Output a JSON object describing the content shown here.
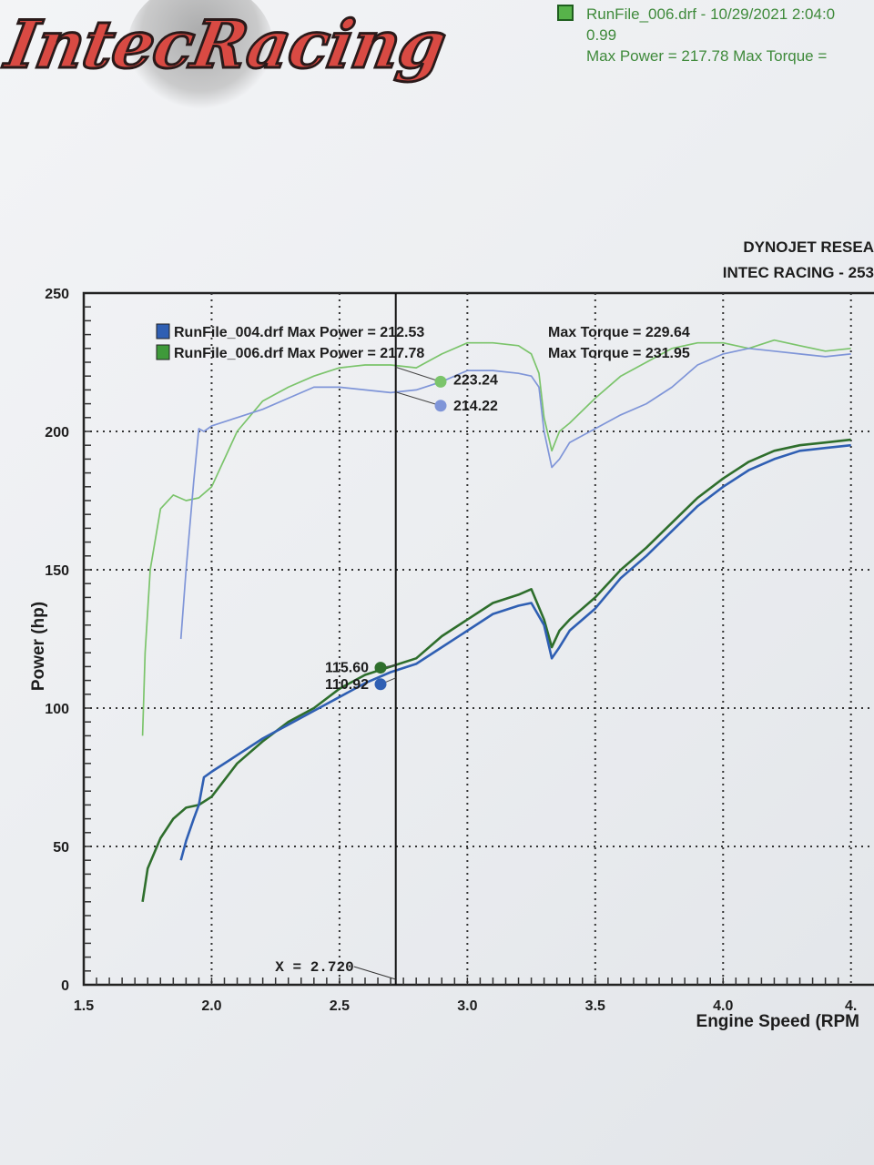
{
  "header": {
    "logo_text": "IntecRacing",
    "run_line": "RunFile_006.drf - 10/29/2021 2:04:0",
    "line2": "0.99",
    "line3": "Max Power = 217.78  Max Torque ="
  },
  "titles": {
    "line1": "DYNOJET RESEA",
    "line2": "INTEC RACING - 253"
  },
  "colors": {
    "run004": "#2f5fb3",
    "run006": "#2e6e2c",
    "run004_light": "#7f95d8",
    "run006_light": "#7bc46b"
  },
  "chart_data": {
    "type": "line",
    "xlabel": "Engine Speed (RPM",
    "ylabel": "Power (hp)",
    "xlim": [
      1.5,
      4.5
    ],
    "ylim": [
      0,
      250
    ],
    "x_ticks": [
      "1.5",
      "2.0",
      "2.5",
      "3.0",
      "3.5",
      "4.0",
      "4."
    ],
    "y_ticks": [
      "0",
      "50",
      "100",
      "150",
      "200",
      "250"
    ],
    "cursor": {
      "x": 2.72,
      "label": "X = 2.720"
    },
    "legend": [
      {
        "file": "RunFile_004.drf",
        "text": "RunFile_004.drf Max Power = 212.53",
        "torque": "Max Torque = 229.64",
        "color": "#2f5fb3"
      },
      {
        "file": "RunFile_006.drf",
        "text": "RunFile_006.drf Max Power = 217.78",
        "torque": "Max Torque = 231.95",
        "color": "#3f9a3a"
      }
    ],
    "cursor_values": {
      "power_006": "115.60",
      "power_004": "110.92",
      "torque_006": "223.24",
      "torque_004": "214.22"
    },
    "series": [
      {
        "name": "RunFile_006.drf",
        "kind": "power",
        "x": [
          1.73,
          1.75,
          1.8,
          1.85,
          1.9,
          1.95,
          2.0,
          2.1,
          2.2,
          2.3,
          2.4,
          2.5,
          2.6,
          2.7,
          2.8,
          2.9,
          3.0,
          3.1,
          3.2,
          3.25,
          3.3,
          3.33,
          3.36,
          3.4,
          3.5,
          3.6,
          3.7,
          3.8,
          3.9,
          4.0,
          4.1,
          4.2,
          4.3,
          4.4,
          4.5
        ],
        "y": [
          30,
          42,
          53,
          60,
          64,
          65,
          68,
          80,
          88,
          95,
          100,
          107,
          112,
          115,
          118,
          126,
          132,
          138,
          141,
          143,
          132,
          122,
          128,
          132,
          140,
          150,
          158,
          167,
          176,
          183,
          189,
          193,
          195,
          196,
          197
        ]
      },
      {
        "name": "RunFile_004.drf",
        "kind": "power",
        "x": [
          1.88,
          1.9,
          1.93,
          1.95,
          1.97,
          2.0,
          2.1,
          2.2,
          2.3,
          2.4,
          2.5,
          2.6,
          2.7,
          2.8,
          2.9,
          3.0,
          3.1,
          3.2,
          3.25,
          3.3,
          3.33,
          3.36,
          3.4,
          3.5,
          3.6,
          3.7,
          3.8,
          3.9,
          4.0,
          4.1,
          4.2,
          4.3,
          4.4,
          4.5
        ],
        "y": [
          45,
          52,
          60,
          65,
          75,
          77,
          83,
          89,
          94,
          99,
          104,
          109,
          113,
          116,
          122,
          128,
          134,
          137,
          138,
          130,
          118,
          122,
          128,
          136,
          147,
          155,
          164,
          173,
          180,
          186,
          190,
          193,
          194,
          195
        ]
      },
      {
        "name": "RunFile_006.drf",
        "kind": "torque",
        "x": [
          1.73,
          1.74,
          1.76,
          1.8,
          1.85,
          1.9,
          1.95,
          2.0,
          2.1,
          2.2,
          2.3,
          2.4,
          2.5,
          2.6,
          2.7,
          2.8,
          2.9,
          3.0,
          3.1,
          3.2,
          3.25,
          3.28,
          3.3,
          3.33,
          3.36,
          3.4,
          3.5,
          3.6,
          3.7,
          3.8,
          3.9,
          4.0,
          4.1,
          4.2,
          4.3,
          4.4,
          4.5
        ],
        "y": [
          90,
          120,
          150,
          172,
          177,
          175,
          176,
          180,
          200,
          211,
          216,
          220,
          223,
          224,
          224,
          223,
          228,
          232,
          232,
          231,
          228,
          221,
          205,
          193,
          200,
          203,
          212,
          220,
          225,
          230,
          232,
          232,
          230,
          233,
          231,
          229,
          230
        ]
      },
      {
        "name": "RunFile_004.drf",
        "kind": "torque",
        "x": [
          1.88,
          1.9,
          1.93,
          1.95,
          1.97,
          2.0,
          2.1,
          2.2,
          2.3,
          2.4,
          2.5,
          2.6,
          2.7,
          2.8,
          2.9,
          3.0,
          3.1,
          3.2,
          3.25,
          3.28,
          3.3,
          3.33,
          3.36,
          3.4,
          3.5,
          3.6,
          3.7,
          3.8,
          3.9,
          4.0,
          4.1,
          4.2,
          4.3,
          4.4,
          4.5
        ],
        "y": [
          125,
          150,
          182,
          201,
          200,
          202,
          205,
          208,
          212,
          216,
          216,
          215,
          214,
          215,
          218,
          222,
          222,
          221,
          220,
          216,
          200,
          187,
          190,
          196,
          201,
          206,
          210,
          216,
          224,
          228,
          230,
          229,
          228,
          227,
          228
        ]
      }
    ]
  }
}
